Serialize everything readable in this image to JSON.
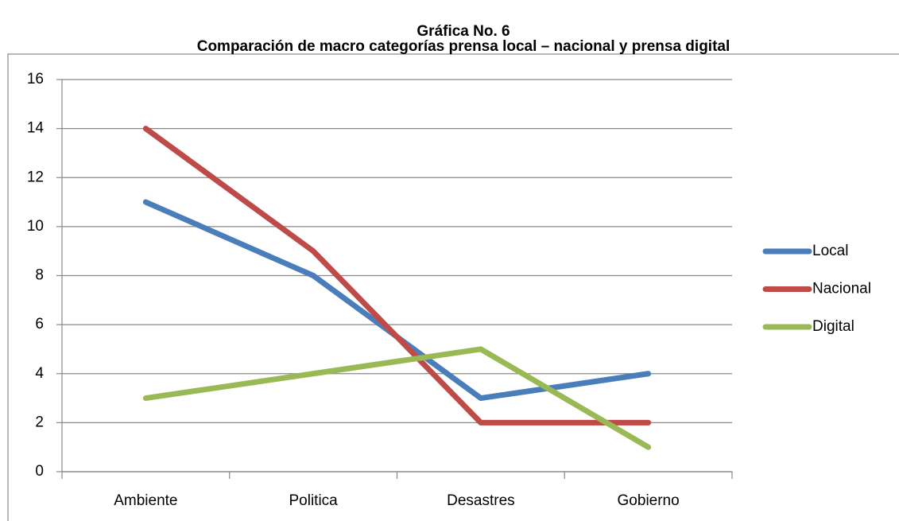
{
  "chart_data": {
    "type": "line",
    "title": "Gráfica No. 6",
    "subtitle": "Comparación de macro categorías prensa local – nacional y prensa digital",
    "categories": [
      "Ambiente",
      "Politica",
      "Desastres",
      "Gobierno"
    ],
    "series": [
      {
        "name": "Local",
        "color": "#4a7ebb",
        "values": [
          11,
          8,
          3,
          4
        ]
      },
      {
        "name": "Nacional",
        "color": "#be4b48",
        "values": [
          14,
          9,
          2,
          2
        ]
      },
      {
        "name": "Digital",
        "color": "#98b954",
        "values": [
          3,
          4,
          5,
          1
        ]
      }
    ],
    "ylim": [
      0,
      16
    ],
    "yticks": [
      0,
      2,
      4,
      6,
      8,
      10,
      12,
      14,
      16
    ],
    "grid": true,
    "legend": "right"
  }
}
